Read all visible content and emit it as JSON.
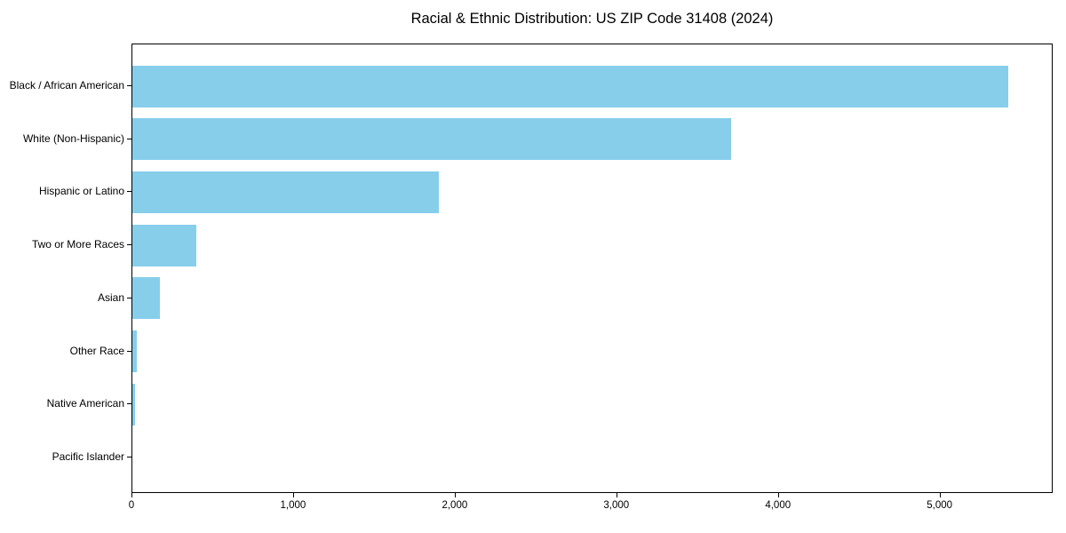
{
  "figure": {
    "title": "Racial & Ethnic Distribution: US ZIP Code 31408 (2024)"
  },
  "chart_data": {
    "type": "bar",
    "orientation": "horizontal",
    "title": "Racial & Ethnic Distribution: US ZIP Code 31408 (2024)",
    "categories": [
      "Black / African American",
      "White (Non-Hispanic)",
      "Hispanic or Latino",
      "Two or More Races",
      "Asian",
      "Other Race",
      "Native American",
      "Pacific Islander"
    ],
    "values": [
      5430,
      3710,
      1900,
      395,
      170,
      27,
      16,
      0
    ],
    "xlabel": "",
    "ylabel": "",
    "xlim": [
      0,
      5700
    ],
    "x_ticks": [
      0,
      1000,
      2000,
      3000,
      4000,
      5000
    ],
    "x_tick_labels": [
      "0",
      "1,000",
      "2,000",
      "3,000",
      "4,000",
      "5,000"
    ],
    "bar_color": "#87CEEB",
    "axis_color": "#000000",
    "plot_background": "#ffffff",
    "grid": false,
    "legend": null,
    "value_labels": false
  }
}
